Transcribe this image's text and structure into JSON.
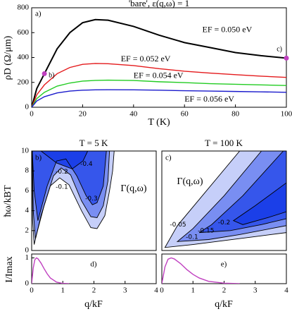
{
  "chart_data": [
    {
      "type": "line",
      "title": "'bare', ε(q,ω) = 1",
      "panel_label": "a)",
      "xlabel": "T (K)",
      "ylabel": "ρD (Ω/μm)",
      "xlim": [
        0,
        100
      ],
      "ylim": [
        0,
        800
      ],
      "xticks": [
        0,
        20,
        40,
        60,
        80,
        100
      ],
      "yticks": [
        0,
        200,
        400,
        600,
        800
      ],
      "x": [
        0,
        2,
        5,
        10,
        15,
        20,
        25,
        30,
        40,
        50,
        60,
        70,
        80,
        90,
        100
      ],
      "series": [
        {
          "name": "EF = 0.050 eV",
          "color": "#000000",
          "values": [
            0,
            150,
            270,
            470,
            600,
            680,
            705,
            700,
            650,
            580,
            520,
            480,
            440,
            415,
            395
          ]
        },
        {
          "name": "EF = 0.052 eV",
          "color": "#e41a1c",
          "values": [
            0,
            100,
            180,
            270,
            320,
            345,
            352,
            350,
            335,
            310,
            290,
            275,
            262,
            250,
            240
          ]
        },
        {
          "name": "EF = 0.054 eV",
          "color": "#22cc22",
          "values": [
            0,
            70,
            120,
            170,
            195,
            210,
            216,
            218,
            215,
            205,
            198,
            190,
            185,
            180,
            175
          ]
        },
        {
          "name": "EF = 0.056 eV",
          "color": "#1a1acc",
          "values": [
            0,
            50,
            85,
            115,
            130,
            137,
            140,
            141,
            140,
            137,
            133,
            130,
            127,
            124,
            120
          ]
        }
      ],
      "points": {
        "x": [
          5,
          100
        ],
        "values": [
          270,
          395
        ],
        "labels": [
          "b)",
          "c)"
        ],
        "color": "#c040c0"
      }
    },
    {
      "type": "contour",
      "title": "T = 5 K",
      "panel_label": "b)",
      "annotation": "Γ(q,ω)",
      "ylabel": "ħω/kBT",
      "xlim": [
        0,
        4
      ],
      "ylim": [
        0,
        10
      ],
      "yticks": [
        0,
        2,
        4,
        6,
        8,
        10
      ],
      "color": "#1a3ee8",
      "series": [
        {
          "level": -0.1,
          "x": [
            0.02,
            0.03,
            0.08,
            0.3,
            0.6,
            0.9,
            1.2,
            1.6,
            1.9,
            2.1,
            2.35,
            2.5,
            2.6,
            2.65
          ],
          "values": [
            10,
            3,
            0.6,
            3.5,
            6.5,
            7.3,
            6.6,
            4,
            2.3,
            2.2,
            3.5,
            6,
            8,
            10
          ]
        },
        {
          "level": -0.2,
          "x": [
            0.02,
            0.05,
            0.12,
            0.4,
            0.7,
            0.95,
            1.25,
            1.6,
            1.9,
            2.1,
            2.3,
            2.45,
            2.5
          ],
          "values": [
            10,
            4,
            1.2,
            4.5,
            7.5,
            8.3,
            7.6,
            5,
            3.4,
            3.3,
            4.5,
            7,
            10
          ]
        },
        {
          "level": -0.3,
          "x": [
            0.02,
            0.08,
            0.2,
            0.5,
            0.8,
            1.1,
            1.45,
            1.75,
            1.95,
            2.1,
            2.3,
            2.4
          ],
          "values": [
            10,
            6,
            3,
            6.5,
            9,
            9.2,
            7.5,
            5.5,
            4.6,
            4.8,
            6.5,
            10
          ]
        },
        {
          "level": -0.4,
          "x": [
            0.3,
            0.8,
            1.3,
            1.65,
            1.8
          ],
          "values": [
            10,
            8.8,
            8.2,
            9,
            10
          ]
        }
      ]
    },
    {
      "type": "contour",
      "title": "T = 100 K",
      "panel_label": "c)",
      "annotation": "Γ(q,ω)",
      "xlim": [
        0,
        4
      ],
      "ylim": [
        0,
        10
      ],
      "color": "#1a3ee8",
      "series": [
        {
          "level": -0.05,
          "x": [
            2.5,
            1.3,
            0.5,
            0.1,
            1,
            2,
            3,
            4
          ],
          "values": [
            10,
            5.5,
            2.5,
            0.3,
            0.6,
            1,
            1.4,
            1.8
          ]
        },
        {
          "level": -0.1,
          "x": [
            3.2,
            2,
            1,
            0.5,
            1.5,
            2.5,
            4
          ],
          "values": [
            10,
            5.5,
            2.2,
            0.9,
            1.1,
            1.6,
            2.5
          ]
        },
        {
          "level": -0.15,
          "x": [
            3.9,
            2.6,
            1.6,
            1.2,
            2.2,
            3.2,
            4
          ],
          "values": [
            10,
            5.5,
            2.6,
            1.8,
            2,
            2.6,
            3.2
          ]
        },
        {
          "level": -0.2,
          "x": [
            4,
            3,
            2.3,
            2.6,
            3.4,
            4
          ],
          "values": [
            6.8,
            4.5,
            3,
            2.6,
            3.3,
            3.9
          ]
        }
      ]
    },
    {
      "type": "line",
      "panel_label": "d)",
      "xlabel": "q/kF",
      "ylabel": "I/Imax",
      "xlim": [
        0,
        4
      ],
      "ylim": [
        0,
        1.15
      ],
      "xticks": [
        0,
        1,
        2,
        3,
        4
      ],
      "yticks": [
        0,
        1
      ],
      "x": [
        0,
        0.05,
        0.1,
        0.15,
        0.2,
        0.3,
        0.4,
        0.5,
        0.6,
        0.8,
        1.0,
        1.2
      ],
      "series": [
        {
          "color": "#c040c0",
          "values": [
            0,
            0.6,
            0.92,
            1,
            0.97,
            0.8,
            0.58,
            0.38,
            0.22,
            0.06,
            0.01,
            0
          ]
        }
      ]
    },
    {
      "type": "line",
      "panel_label": "e)",
      "xlabel": "q/kF",
      "xlim": [
        0,
        4
      ],
      "ylim": [
        0,
        1.15
      ],
      "xticks": [
        0,
        1,
        2,
        3,
        4
      ],
      "x": [
        0,
        0.1,
        0.2,
        0.3,
        0.4,
        0.6,
        0.8,
        1,
        1.2,
        1.5,
        2,
        2.5
      ],
      "series": [
        {
          "color": "#c040c0",
          "values": [
            0,
            0.65,
            0.95,
            1,
            0.96,
            0.78,
            0.55,
            0.36,
            0.22,
            0.09,
            0.02,
            0
          ]
        }
      ]
    }
  ]
}
